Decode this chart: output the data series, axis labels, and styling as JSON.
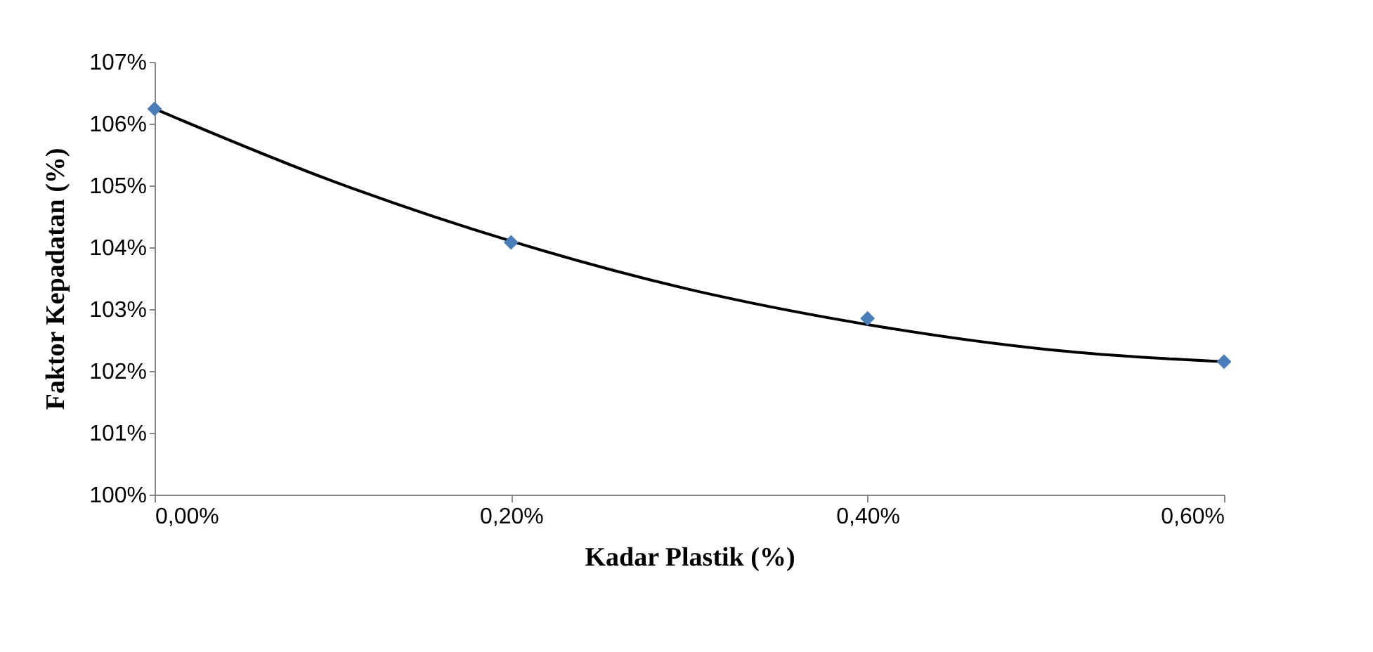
{
  "chart_data": {
    "type": "scatter",
    "xlabel": "Kadar Plastik (%)",
    "ylabel": "Faktor Kepadatan (%)",
    "x": [
      0,
      0.2,
      0.4,
      0.6
    ],
    "series": [
      {
        "type": "line",
        "color": "#000000",
        "marker": "none",
        "line_style": "solid",
        "x": [
          0,
          0.1,
          0.2,
          0.3,
          0.4,
          0.5,
          0.6
        ],
        "values": [
          106.24,
          105.07,
          104.1,
          103.32,
          102.75,
          102.35,
          102.15
        ]
      },
      {
        "color": "#4a7ebb",
        "marker": "diamond",
        "values": [
          106.24,
          104.08,
          102.85,
          102.15
        ]
      }
    ],
    "xlim": [
      0,
      0.6
    ],
    "xticks": [
      {
        "value": 0,
        "label": "0,00%"
      },
      {
        "value": 0.2,
        "label": "0,20%"
      },
      {
        "value": 0.4,
        "label": "0,40%"
      },
      {
        "value": 0.6,
        "label": "0,60%"
      }
    ],
    "ylim": [
      100,
      107
    ],
    "yticks": [
      {
        "value": 100,
        "label": "100%"
      },
      {
        "value": 101,
        "label": "101%"
      },
      {
        "value": 102,
        "label": "102%"
      },
      {
        "value": 103,
        "label": "103%"
      },
      {
        "value": 104,
        "label": "104%"
      },
      {
        "value": 105,
        "label": "105%"
      },
      {
        "value": 106,
        "label": "106%"
      },
      {
        "value": 107,
        "label": "107%"
      }
    ],
    "grid": false
  }
}
